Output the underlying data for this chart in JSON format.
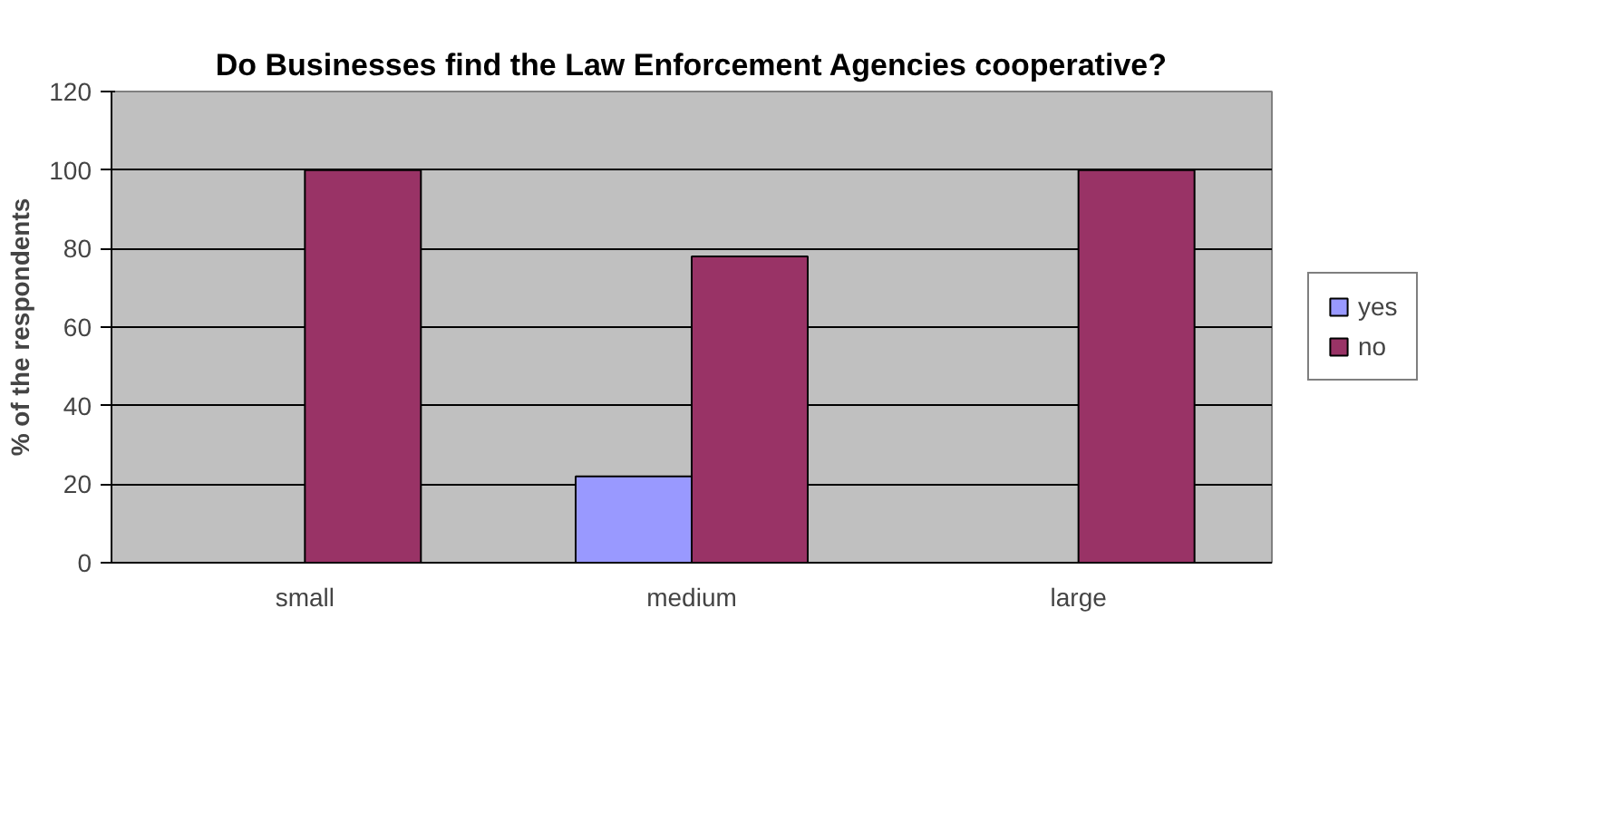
{
  "chart_data": {
    "type": "bar",
    "title": "Do Businesses find the Law Enforcement Agencies cooperative?",
    "ylabel": "% of the respondents",
    "categories": [
      "small",
      "medium",
      "large"
    ],
    "series": [
      {
        "name": "yes",
        "color": "#9999ff",
        "values": [
          0,
          22,
          0
        ]
      },
      {
        "name": "no",
        "color": "#993366",
        "values": [
          100,
          78,
          100
        ]
      }
    ],
    "ylim": [
      0,
      120
    ],
    "yticks": [
      0,
      20,
      40,
      60,
      80,
      100,
      120
    ],
    "grid": "y",
    "legend": "right"
  }
}
